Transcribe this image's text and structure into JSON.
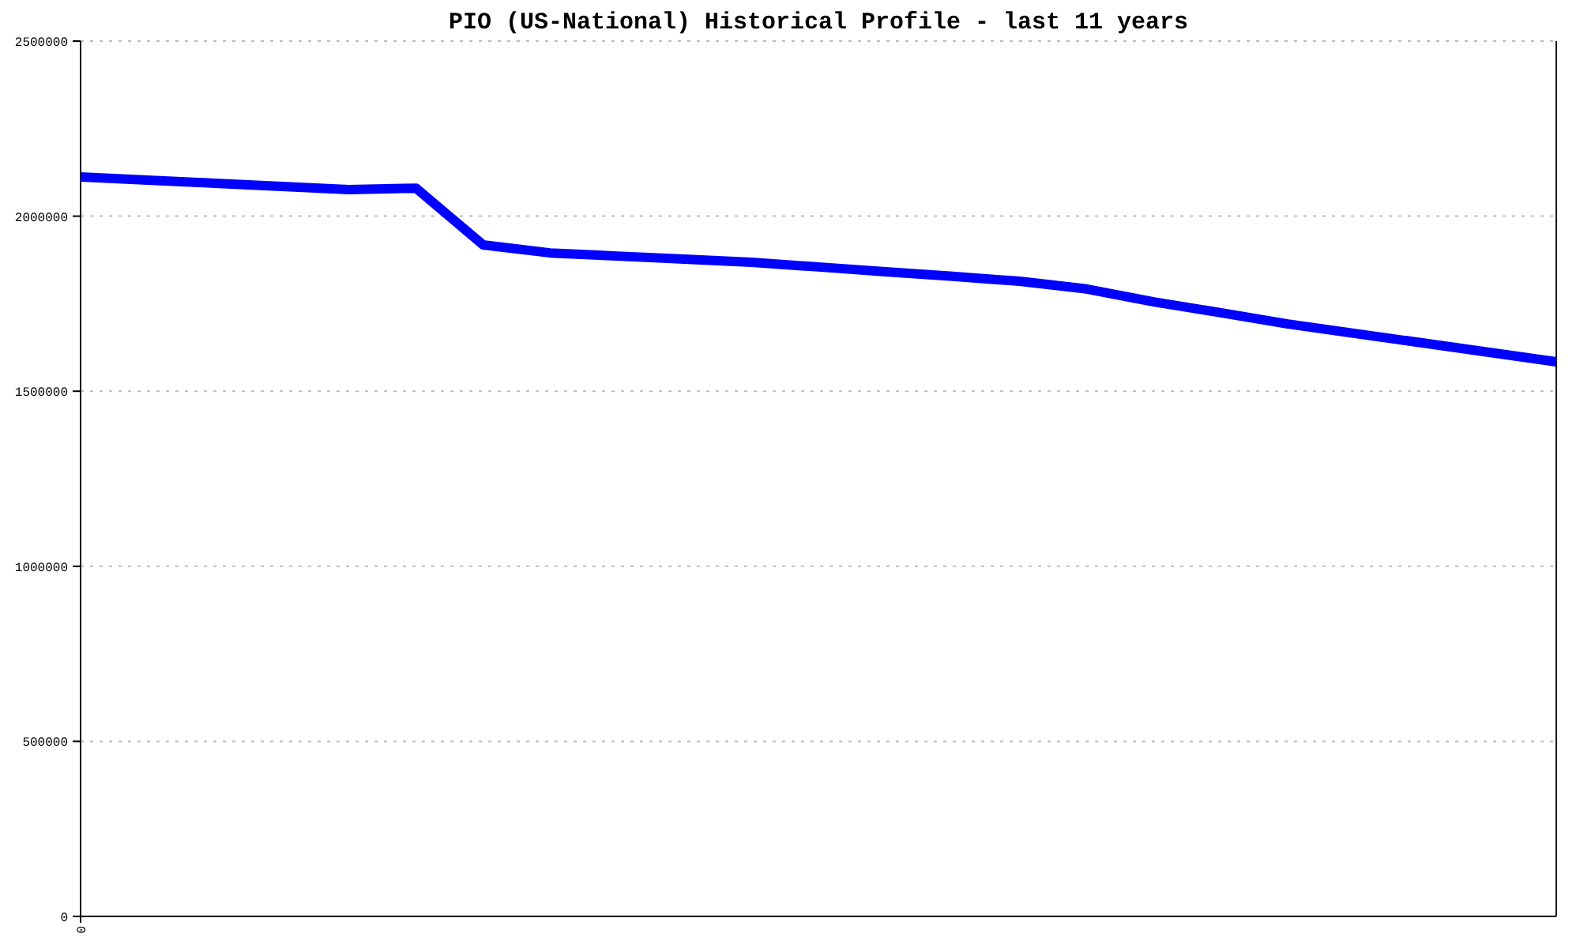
{
  "chart_data": {
    "type": "line",
    "title": "PIO (US-National) Historical Profile - last 11 years",
    "categories": [
      "0",
      null,
      null,
      null,
      null,
      null,
      null,
      null,
      null,
      null,
      null,
      null,
      null,
      null,
      null,
      null,
      null,
      null,
      null,
      null,
      null,
      null,
      null
    ],
    "series": [
      {
        "color": "#0000ff",
        "values": [
          2112000,
          2103000,
          2094000,
          2085000,
          2076000,
          2080000,
          1918000,
          1895000,
          1886000,
          1877000,
          1868000,
          1855000,
          1841000,
          1828000,
          1814000,
          1792000,
          1755000,
          1724000,
          1692000,
          1665000,
          1638000,
          1611000,
          1584000
        ]
      }
    ],
    "ylim": [
      0,
      2500000
    ],
    "yticks": [
      0,
      500000,
      1000000,
      1500000,
      2000000,
      2500000
    ],
    "grid": "y",
    "marker": "none",
    "line_style": "solid"
  }
}
